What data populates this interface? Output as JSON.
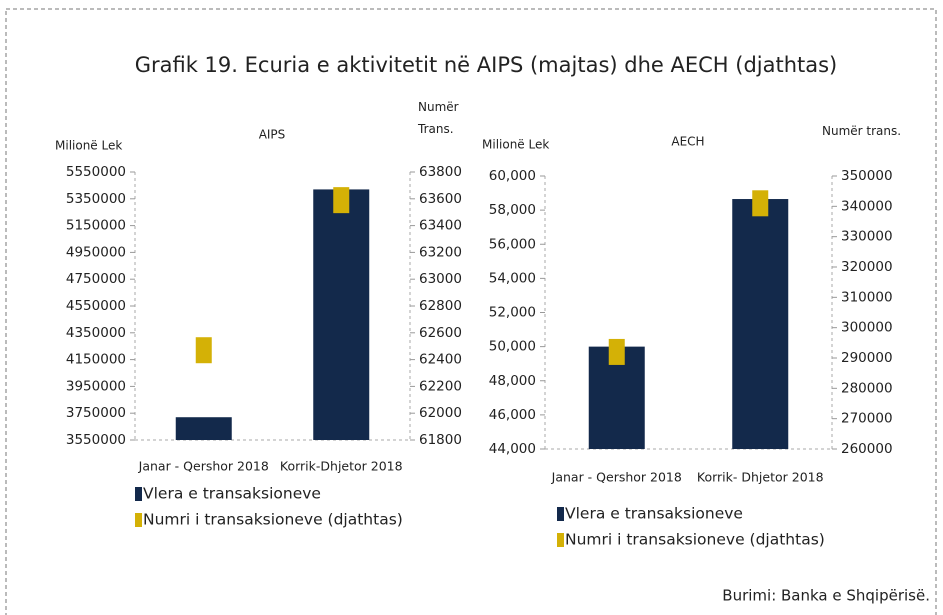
{
  "figure": {
    "title": "Grafik 19. Ecuria e aktivitetit në AIPS (majtas) dhe AECH (djathtas)",
    "source": "Burimi: Banka e Shqipërisë."
  },
  "chart_data": [
    {
      "type": "bar",
      "title": "AIPS",
      "ylabel": "Milionë Lek",
      "y2label": "Numër Trans.",
      "categories": [
        "Janar - Qershor 2018",
        "Korrik-Dhjetor 2018"
      ],
      "series": [
        {
          "name": "Vlera e transaksioneve",
          "color": "#13294b",
          "values": [
            3720000,
            5420000
          ]
        },
        {
          "name": "Numri i transaksioneve (djathtas)",
          "color": "#d4b106",
          "marker": "square",
          "axis": "y2",
          "values": [
            62470,
            63590
          ]
        }
      ],
      "ylim": [
        3550000,
        5550000
      ],
      "yticks": [
        3550000,
        3750000,
        3950000,
        4150000,
        4350000,
        4550000,
        4750000,
        4950000,
        5150000,
        5350000,
        5550000
      ],
      "y2lim": [
        61800,
        63800
      ],
      "y2ticks": [
        61800,
        62000,
        62200,
        62400,
        62600,
        62800,
        63000,
        63200,
        63400,
        63600,
        63800
      ],
      "legend": "bottom-left",
      "grid": false
    },
    {
      "type": "bar",
      "title": "AECH",
      "ylabel": "Milionë Lek",
      "y2label": "Numër trans.",
      "categories": [
        "Janar - Qershor 2018",
        "Korrik- Dhjetor 2018"
      ],
      "series": [
        {
          "name": "Vlera e transaksioneve",
          "color": "#13294b",
          "values": [
            50000,
            58650
          ]
        },
        {
          "name": "Numri i transaksioneve (djathtas)",
          "color": "#d4b106",
          "marker": "square",
          "axis": "y2",
          "values": [
            292000,
            341000
          ]
        }
      ],
      "ylim": [
        44000,
        60000
      ],
      "yticks": [
        {
          "value": 44000,
          "label": "44,000"
        },
        {
          "value": 46000,
          "label": "46,000"
        },
        {
          "value": 48000,
          "label": "48,000"
        },
        {
          "value": 50000,
          "label": "50,000"
        },
        {
          "value": 52000,
          "label": "52,000"
        },
        {
          "value": 54000,
          "label": "54,000"
        },
        {
          "value": 56000,
          "label": "56,000"
        },
        {
          "value": 58000,
          "label": "58,000"
        },
        {
          "value": 60000,
          "label": "60,000"
        }
      ],
      "y2lim": [
        260000,
        350000
      ],
      "y2ticks": [
        260000,
        270000,
        280000,
        290000,
        300000,
        310000,
        320000,
        330000,
        340000,
        350000
      ],
      "legend": "bottom-left",
      "grid": false
    }
  ]
}
